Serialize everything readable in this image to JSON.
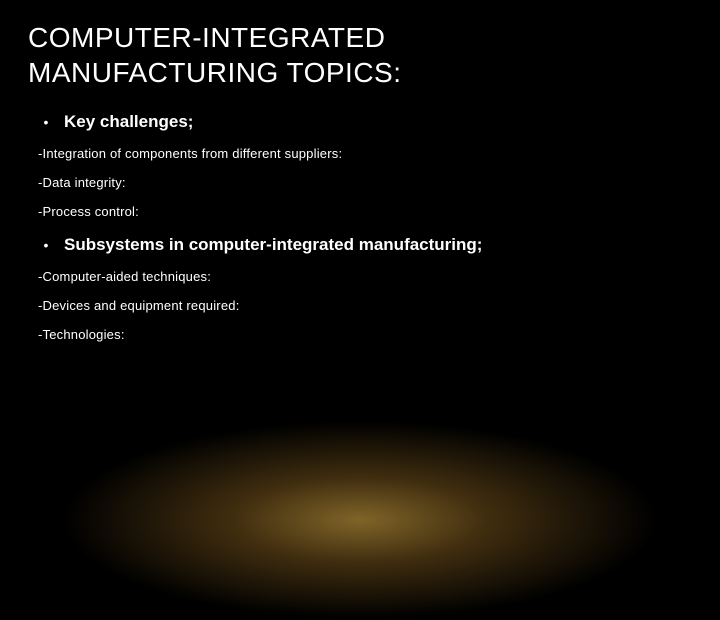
{
  "slide": {
    "title_line1": "COMPUTER-INTEGRATED",
    "title_line2": "MANUFACTURING TOPICS:",
    "bullets": [
      {
        "label": "Key challenges;",
        "subs": [
          "-Integration of components from different suppliers:",
          "-Data integrity:",
          "-Process control:"
        ]
      },
      {
        "label": "Subsystems in computer-integrated manufacturing;",
        "subs": [
          "-Computer-aided techniques:",
          "-Devices and equipment required:",
          "-Technologies:"
        ]
      }
    ],
    "colors": {
      "background": "#000000",
      "text": "#ffffff",
      "glow_inner": "rgba(255,200,80,0.5)",
      "glow_mid": "rgba(255,180,60,0.25)"
    },
    "typography": {
      "title_fontsize": 28,
      "bullet_fontsize": 17,
      "sub_fontsize": 13,
      "font_family": "Arial"
    }
  }
}
